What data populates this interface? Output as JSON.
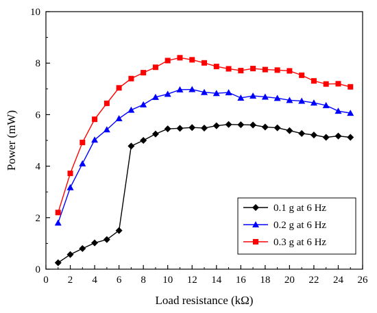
{
  "chart_data": {
    "type": "line",
    "title": "",
    "xlabel": "Load resistance (kΩ)",
    "ylabel": "Power (mW)",
    "xlim": [
      0,
      26
    ],
    "ylim": [
      0,
      10
    ],
    "xticks": [
      0,
      2,
      4,
      6,
      8,
      10,
      12,
      14,
      16,
      18,
      20,
      22,
      24,
      26
    ],
    "yticks": [
      0,
      2,
      4,
      6,
      8,
      10
    ],
    "grid": false,
    "legend_position": "bottom-right",
    "x": [
      1,
      2,
      3,
      4,
      5,
      6,
      7,
      8,
      9,
      10,
      11,
      12,
      13,
      14,
      15,
      16,
      17,
      18,
      19,
      20,
      21,
      22,
      23,
      24,
      25
    ],
    "series": [
      {
        "name": "0.1 g at 6 Hz",
        "color": "#000000",
        "marker": "diamond",
        "values": [
          0.25,
          0.57,
          0.8,
          1.02,
          1.15,
          1.5,
          4.78,
          5.0,
          5.25,
          5.45,
          5.47,
          5.5,
          5.48,
          5.57,
          5.62,
          5.61,
          5.6,
          5.52,
          5.49,
          5.38,
          5.27,
          5.21,
          5.12,
          5.17,
          5.12
        ]
      },
      {
        "name": "0.2 g at 6 Hz",
        "color": "#0000ff",
        "marker": "triangle",
        "values": [
          1.8,
          3.17,
          4.1,
          5.02,
          5.42,
          5.85,
          6.18,
          6.39,
          6.68,
          6.8,
          6.97,
          6.98,
          6.87,
          6.83,
          6.86,
          6.65,
          6.73,
          6.69,
          6.64,
          6.56,
          6.53,
          6.46,
          6.36,
          6.14,
          6.06
        ]
      },
      {
        "name": "0.3 g at 6 Hz",
        "color": "#ff0000",
        "marker": "square",
        "values": [
          2.2,
          3.72,
          4.92,
          5.82,
          6.44,
          7.04,
          7.4,
          7.63,
          7.84,
          8.1,
          8.21,
          8.13,
          8.01,
          7.87,
          7.78,
          7.71,
          7.79,
          7.75,
          7.73,
          7.7,
          7.53,
          7.31,
          7.19,
          7.2,
          7.08
        ]
      }
    ]
  }
}
